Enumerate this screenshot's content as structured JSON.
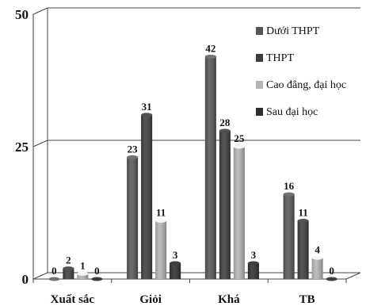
{
  "chart_data": {
    "type": "bar",
    "categories": [
      "Xuất sắc",
      "Giỏi",
      "Khá",
      "TB"
    ],
    "series": [
      {
        "name": "Dưới THPT",
        "values": [
          0,
          23,
          42,
          16
        ],
        "color": "#555555"
      },
      {
        "name": "THPT",
        "values": [
          2,
          31,
          28,
          11
        ],
        "color": "#3d3d3d"
      },
      {
        "name": "Cao đẳng, đại học",
        "values": [
          1,
          11,
          25,
          4
        ],
        "color": "#b5b5b5"
      },
      {
        "name": "Sau đại học",
        "values": [
          0,
          3,
          3,
          0
        ],
        "color": "#2e2e2e"
      }
    ],
    "yticks": [
      0,
      25,
      50
    ],
    "ylim": [
      0,
      50
    ],
    "legend_position": "top-right",
    "grid": true,
    "three_d": true
  }
}
